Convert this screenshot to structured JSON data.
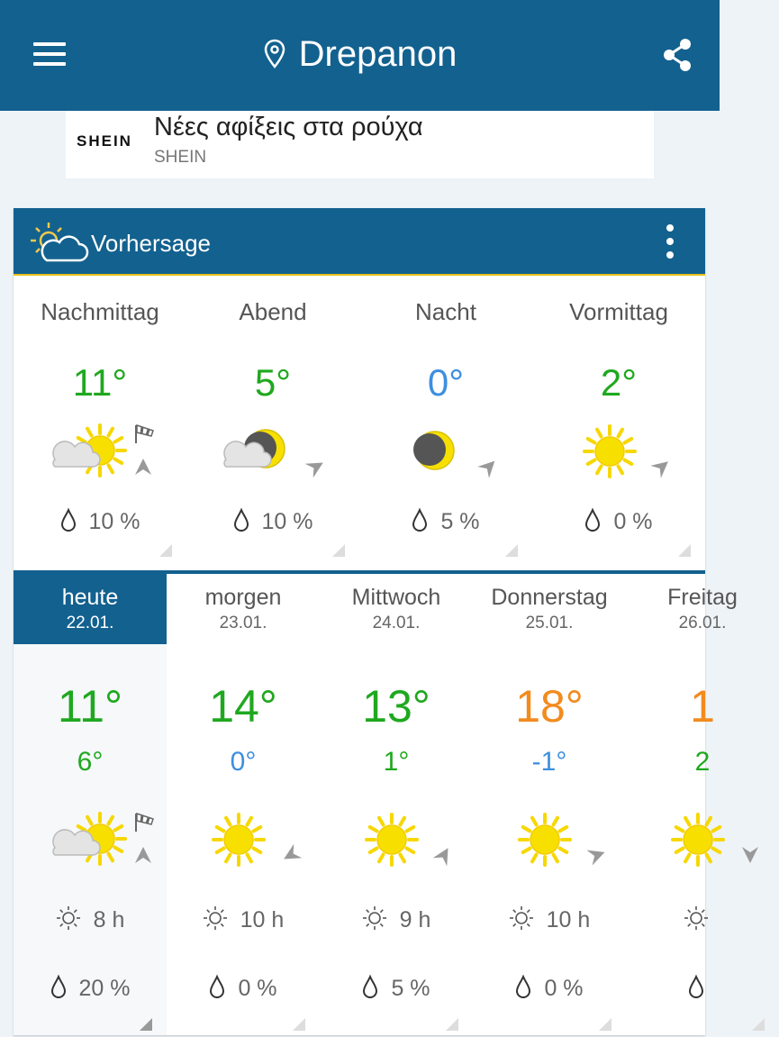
{
  "header": {
    "title": "Drepanon",
    "menu_icon": "hamburger-icon",
    "location_icon": "location-pin-icon",
    "share_icon": "share-icon"
  },
  "ad": {
    "brand": "SHEIN",
    "headline": "Νέες αφίξεις στα ρούχα",
    "advertiser": "SHEIN"
  },
  "forecast": {
    "title": "Vorhersage",
    "colors": {
      "warm": "#1fa81f",
      "cold": "#3d8fe0",
      "hot": "#f28b1e",
      "header": "#13618f",
      "accent": "#e8c21c"
    },
    "periods": [
      {
        "name": "Nachmittag",
        "temp": "11°",
        "temp_class": "warm",
        "icon": "cloud-sun",
        "wind_dir": 180,
        "gusts": true,
        "rain": "10 %"
      },
      {
        "name": "Abend",
        "temp": "5°",
        "temp_class": "warm",
        "icon": "cloud-moon",
        "wind_dir": 240,
        "gusts": false,
        "rain": "10 %"
      },
      {
        "name": "Nacht",
        "temp": "0°",
        "temp_class": "cold",
        "icon": "moon",
        "wind_dir": 225,
        "gusts": false,
        "rain": "5 %"
      },
      {
        "name": "Vormittag",
        "temp": "2°",
        "temp_class": "warm",
        "icon": "sun",
        "wind_dir": 230,
        "gusts": false,
        "rain": "0 %"
      }
    ],
    "days": [
      {
        "name": "heute",
        "date": "22.01.",
        "selected": true,
        "high": "11°",
        "high_class": "warm",
        "low": "6°",
        "low_class": "warm",
        "icon": "cloud-sun",
        "wind_dir": 180,
        "gusts": true,
        "sunshine": "8 h",
        "rain": "20 %"
      },
      {
        "name": "morgen",
        "date": "23.01.",
        "high": "14°",
        "high_class": "warm",
        "low": "0°",
        "low_class": "cold",
        "icon": "sun",
        "wind_dir": 60,
        "gusts": false,
        "sunshine": "10 h",
        "rain": "0 %"
      },
      {
        "name": "Mittwoch",
        "date": "24.01.",
        "high": "13°",
        "high_class": "warm",
        "low": "1°",
        "low_class": "warm",
        "icon": "sun",
        "wind_dir": 210,
        "gusts": false,
        "sunshine": "9 h",
        "rain": "5 %"
      },
      {
        "name": "Donnerstag",
        "date": "25.01.",
        "high": "18°",
        "high_class": "hot",
        "low": "-1°",
        "low_class": "cold",
        "icon": "sun",
        "wind_dir": 250,
        "gusts": false,
        "sunshine": "10 h",
        "rain": "0 %"
      },
      {
        "name": "Freitag",
        "date": "26.01.",
        "high": "1",
        "high_class": "hot",
        "low": "2",
        "low_class": "warm",
        "icon": "sun",
        "wind_dir": 0,
        "gusts": false,
        "sunshine": "",
        "rain": ""
      }
    ]
  }
}
